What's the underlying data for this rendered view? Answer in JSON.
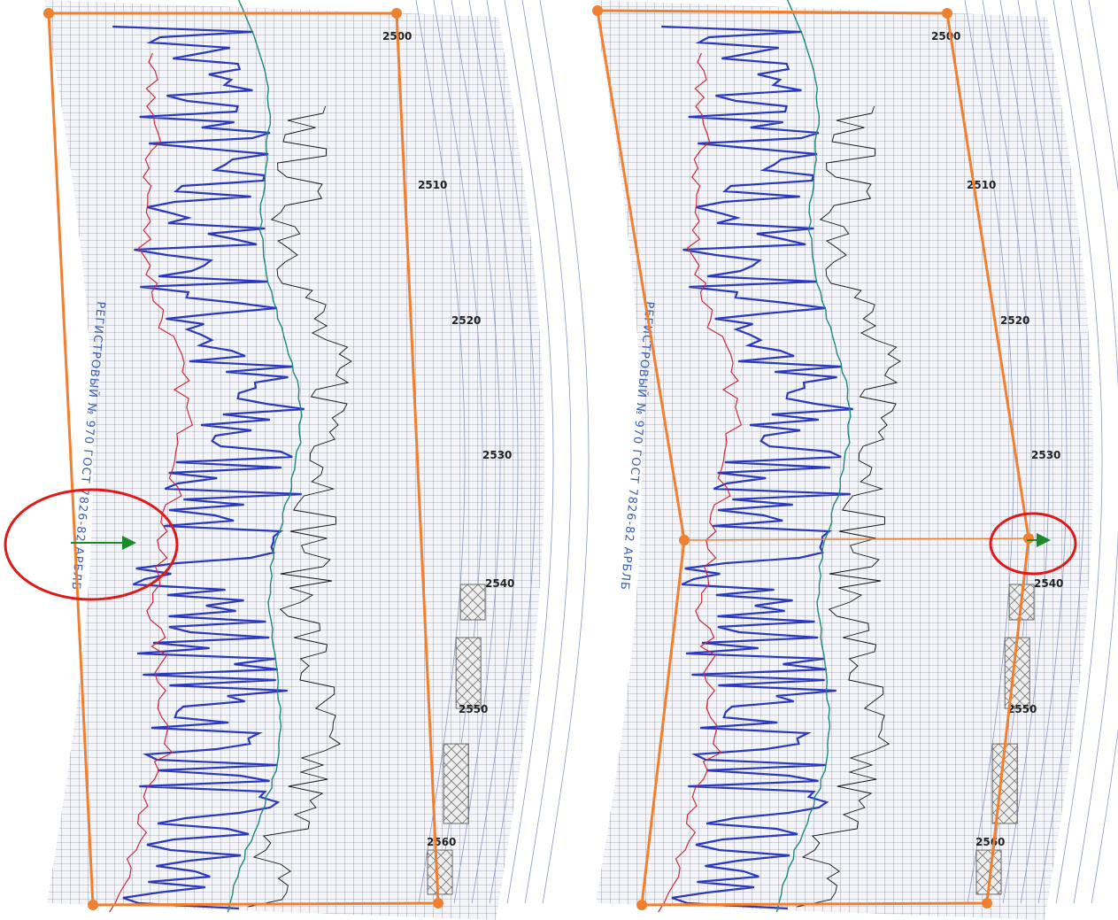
{
  "panels": [
    {
      "depth_labels": [
        "2500",
        "2510",
        "2520",
        "2530",
        "2540",
        "2550",
        "2560"
      ],
      "stamp": "РЕГИСТРОВЫЙ № 970 ГОСТ 7826-82 АРБЛБ"
    },
    {
      "depth_labels": [
        "2500",
        "2510",
        "2520",
        "2530",
        "2540",
        "2550",
        "2560"
      ],
      "stamp": "РЕГИСТРОВЫЙ № 970 ГОСТ 7826-82 АРБЛБ"
    }
  ]
}
